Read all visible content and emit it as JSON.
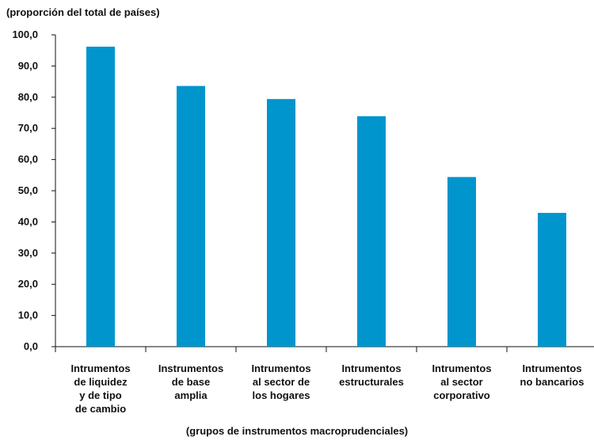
{
  "chart_data": {
    "type": "bar",
    "unit_label": "(proporción del total de países)",
    "xlabel": "(grupos de instrumentos macroprudenciales)",
    "ylabel": "",
    "ylim": [
      0,
      100
    ],
    "ytick_step": 10,
    "ytick_labels": [
      "0,0",
      "10,0",
      "20,0",
      "30,0",
      "40,0",
      "50,0",
      "60,0",
      "70,0",
      "80,0",
      "90,0",
      "100,0"
    ],
    "categories": [
      [
        "Intrumentos",
        "de liquidez",
        "y de tipo",
        "de cambio"
      ],
      [
        "Instrumentos",
        "de base",
        "amplia"
      ],
      [
        "Intrumentos",
        "al sector de",
        "los hogares"
      ],
      [
        "Intrumentos",
        "estructurales"
      ],
      [
        "Intrumentos",
        "al sector",
        "corporativo"
      ],
      [
        "Intrumentos",
        "no bancarios"
      ]
    ],
    "values": [
      96.2,
      83.6,
      79.4,
      73.9,
      54.4,
      42.9
    ],
    "bar_color": "#0095cd",
    "grid": false
  }
}
